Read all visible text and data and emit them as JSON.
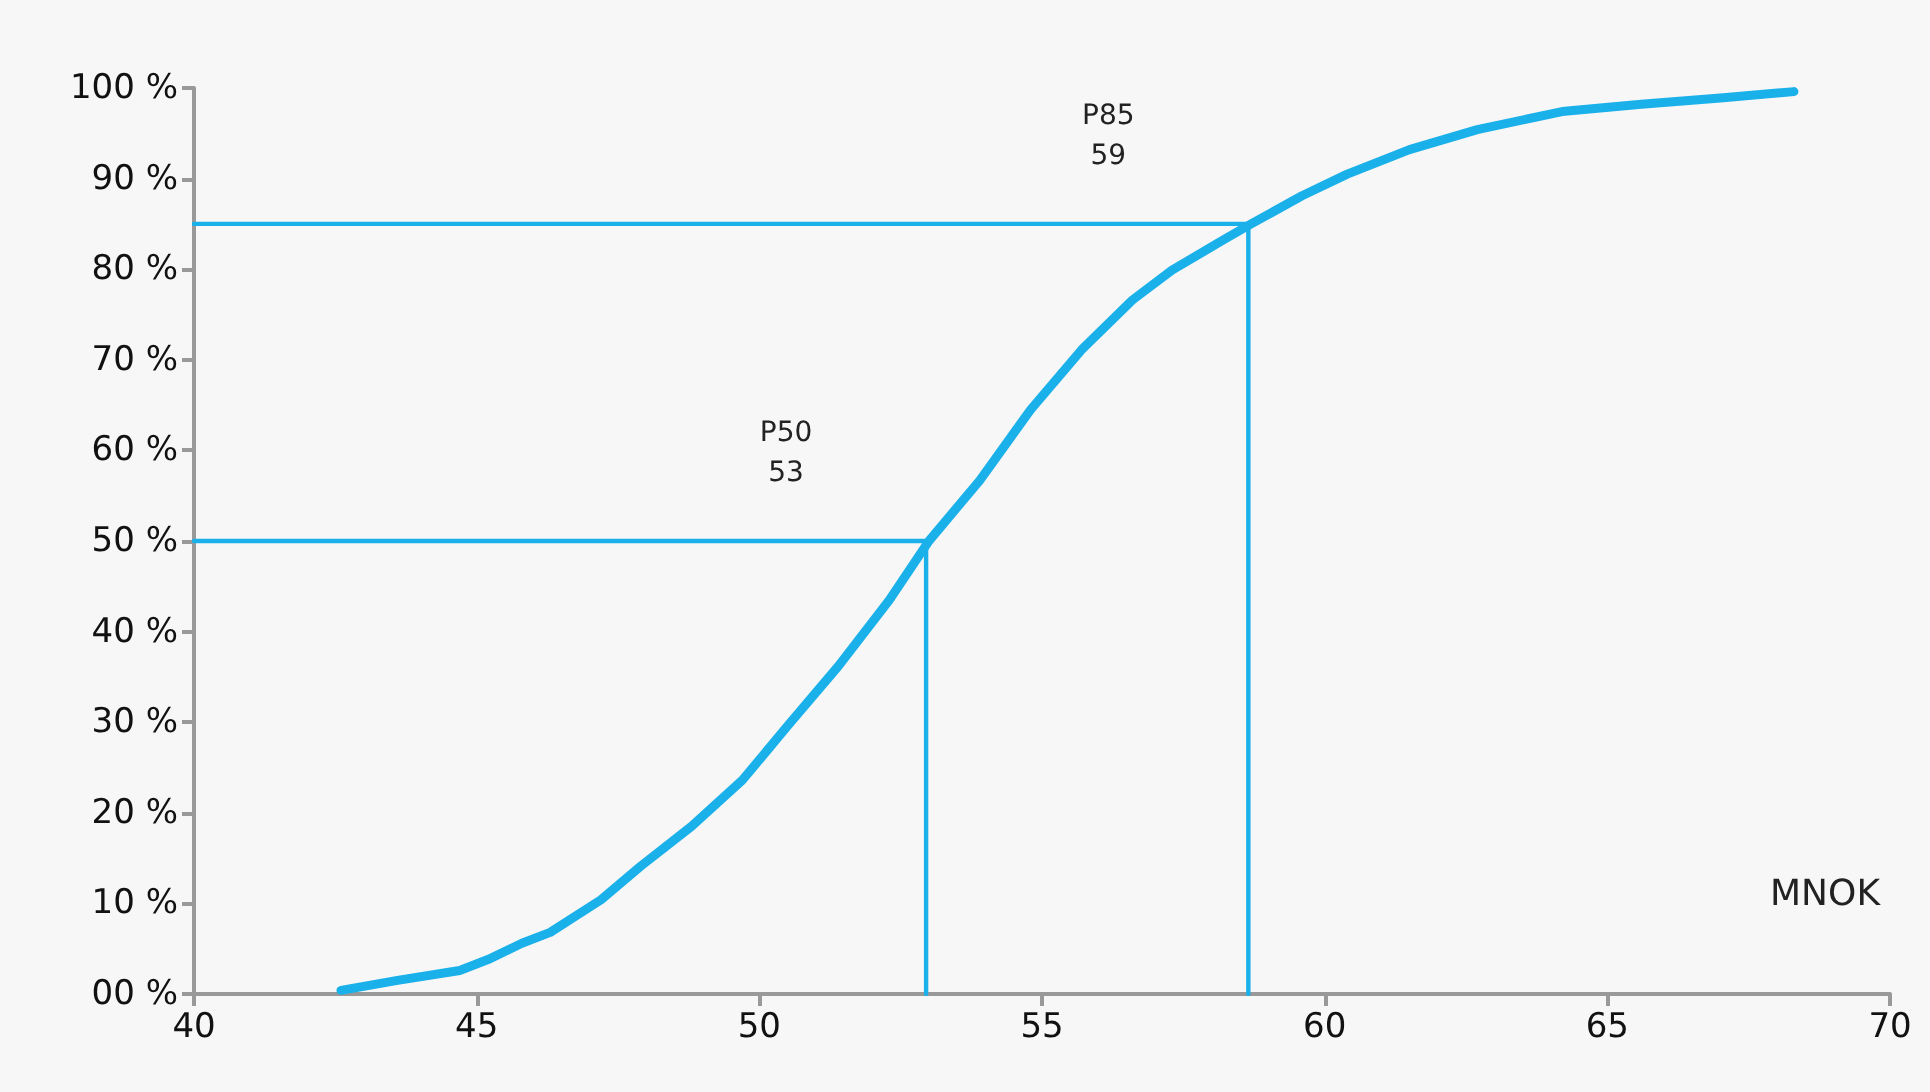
{
  "chart_data": {
    "type": "line",
    "xlabel": "MNOK",
    "grid": false,
    "marker": "none",
    "line_style": "solid",
    "xlim": [
      40,
      70
    ],
    "xticks": [
      40,
      45,
      50,
      55,
      60,
      65,
      70
    ],
    "ylim": [
      0,
      100
    ],
    "yticks": [
      {
        "value": 0,
        "label": "00 %"
      },
      {
        "value": 10,
        "label": "10 %"
      },
      {
        "value": 20,
        "label": "20 %"
      },
      {
        "value": 30,
        "label": "30 %"
      },
      {
        "value": 40,
        "label": "40 %"
      },
      {
        "value": 50,
        "label": "50 %"
      },
      {
        "value": 60,
        "label": "60 %"
      },
      {
        "value": 70,
        "label": "70 %"
      },
      {
        "value": 80,
        "label": "80 %"
      },
      {
        "value": 90,
        "label": "90 %"
      },
      {
        "value": 100,
        "label": "100 %"
      }
    ],
    "series": [
      {
        "color": "#1ab0ea",
        "x": [
          42.6,
          43.6,
          44.7,
          45.2,
          45.8,
          46.3,
          47.2,
          47.9,
          48.8,
          49.7,
          50.5,
          51.4,
          52.3,
          53.0,
          53.9,
          54.8,
          55.7,
          56.6,
          57.3,
          58.2,
          58.7,
          59.6,
          60.4,
          61.5,
          62.7,
          64.2,
          65.6,
          67.0,
          68.3
        ],
        "values": [
          0.4,
          1.5,
          2.6,
          3.8,
          5.6,
          6.8,
          10.4,
          14.1,
          18.5,
          23.6,
          29.6,
          36.2,
          43.5,
          50,
          56.7,
          64.5,
          71.1,
          76.6,
          79.9,
          83.2,
          85,
          88.1,
          90.5,
          93.2,
          95.4,
          97.4,
          98.2,
          98.9,
          99.6
        ]
      },
      {
        "color": "#1ab0ea",
        "x": [
          40,
          52.95,
          52.95
        ],
        "values": [
          50,
          50,
          0
        ]
      },
      {
        "color": "#1ab0ea",
        "x": [
          40,
          58.65,
          58.65
        ],
        "values": [
          85,
          85,
          0
        ]
      }
    ],
    "annotations": [
      "P50\n53",
      "P85\n59"
    ]
  }
}
